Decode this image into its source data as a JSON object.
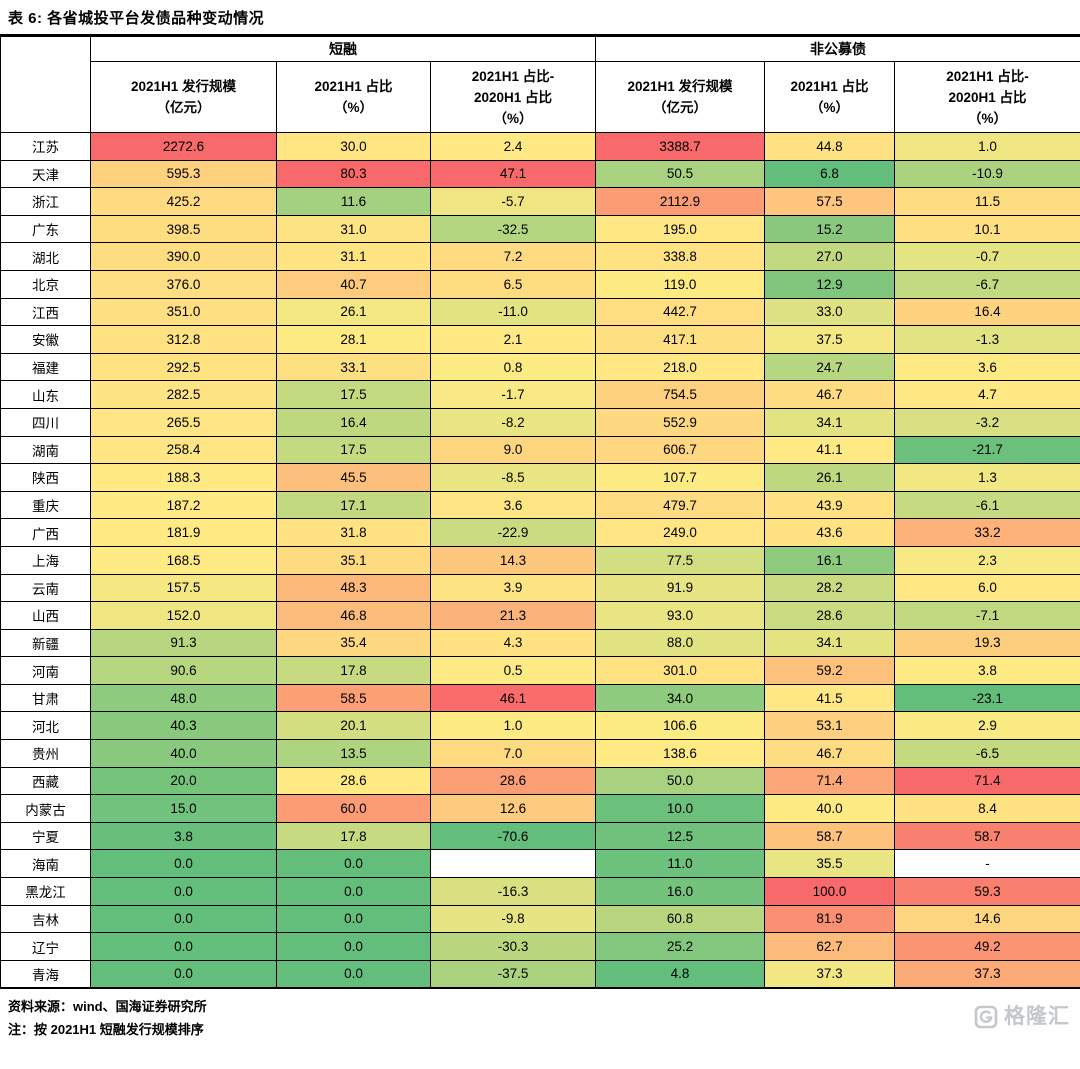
{
  "chart_data": {
    "type": "table",
    "title": "表 6: 各省城投平台发债品种变动情况",
    "corner_label": "",
    "column_groups": [
      {
        "label": "短融",
        "span": 3
      },
      {
        "label": "非公募债",
        "span": 3
      }
    ],
    "columns": [
      {
        "group": "短融",
        "lines": [
          "2021H1 发行规模",
          "（亿元）"
        ]
      },
      {
        "group": "短融",
        "lines": [
          "2021H1 占比",
          "（%）"
        ]
      },
      {
        "group": "短融",
        "lines": [
          "2021H1 占比-",
          "2020H1 占比",
          "（%）"
        ]
      },
      {
        "group": "非公募债",
        "lines": [
          "2021H1 发行规模",
          "（亿元）"
        ]
      },
      {
        "group": "非公募债",
        "lines": [
          "2021H1 占比",
          "（%）"
        ]
      },
      {
        "group": "非公募债",
        "lines": [
          "2021H1 占比-",
          "2020H1 占比",
          "（%）"
        ]
      }
    ],
    "rows": [
      {
        "province": "江苏",
        "values": [
          2272.6,
          30.0,
          2.4,
          3388.7,
          44.8,
          1.0
        ]
      },
      {
        "province": "天津",
        "values": [
          595.3,
          80.3,
          47.1,
          50.5,
          6.8,
          -10.9
        ]
      },
      {
        "province": "浙江",
        "values": [
          425.2,
          11.6,
          -5.7,
          2112.9,
          57.5,
          11.5
        ]
      },
      {
        "province": "广东",
        "values": [
          398.5,
          31.0,
          -32.5,
          195.0,
          15.2,
          10.1
        ]
      },
      {
        "province": "湖北",
        "values": [
          390.0,
          31.1,
          7.2,
          338.8,
          27.0,
          -0.7
        ]
      },
      {
        "province": "北京",
        "values": [
          376.0,
          40.7,
          6.5,
          119.0,
          12.9,
          -6.7
        ]
      },
      {
        "province": "江西",
        "values": [
          351.0,
          26.1,
          -11.0,
          442.7,
          33.0,
          16.4
        ]
      },
      {
        "province": "安徽",
        "values": [
          312.8,
          28.1,
          2.1,
          417.1,
          37.5,
          -1.3
        ]
      },
      {
        "province": "福建",
        "values": [
          292.5,
          33.1,
          0.8,
          218.0,
          24.7,
          3.6
        ]
      },
      {
        "province": "山东",
        "values": [
          282.5,
          17.5,
          -1.7,
          754.5,
          46.7,
          4.7
        ]
      },
      {
        "province": "四川",
        "values": [
          265.5,
          16.4,
          -8.2,
          552.9,
          34.1,
          -3.2
        ]
      },
      {
        "province": "湖南",
        "values": [
          258.4,
          17.5,
          9.0,
          606.7,
          41.1,
          -21.7
        ]
      },
      {
        "province": "陕西",
        "values": [
          188.3,
          45.5,
          -8.5,
          107.7,
          26.1,
          1.3
        ]
      },
      {
        "province": "重庆",
        "values": [
          187.2,
          17.1,
          3.6,
          479.7,
          43.9,
          -6.1
        ]
      },
      {
        "province": "广西",
        "values": [
          181.9,
          31.8,
          -22.9,
          249.0,
          43.6,
          33.2
        ]
      },
      {
        "province": "上海",
        "values": [
          168.5,
          35.1,
          14.3,
          77.5,
          16.1,
          2.3
        ]
      },
      {
        "province": "云南",
        "values": [
          157.5,
          48.3,
          3.9,
          91.9,
          28.2,
          6.0
        ]
      },
      {
        "province": "山西",
        "values": [
          152.0,
          46.8,
          21.3,
          93.0,
          28.6,
          -7.1
        ]
      },
      {
        "province": "新疆",
        "values": [
          91.3,
          35.4,
          4.3,
          88.0,
          34.1,
          19.3
        ]
      },
      {
        "province": "河南",
        "values": [
          90.6,
          17.8,
          0.5,
          301.0,
          59.2,
          3.8
        ]
      },
      {
        "province": "甘肃",
        "values": [
          48.0,
          58.5,
          46.1,
          34.0,
          41.5,
          -23.1
        ]
      },
      {
        "province": "河北",
        "values": [
          40.3,
          20.1,
          1.0,
          106.6,
          53.1,
          2.9
        ]
      },
      {
        "province": "贵州",
        "values": [
          40.0,
          13.5,
          7.0,
          138.6,
          46.7,
          -6.5
        ]
      },
      {
        "province": "西藏",
        "values": [
          20.0,
          28.6,
          28.6,
          50.0,
          71.4,
          71.4
        ]
      },
      {
        "province": "内蒙古",
        "values": [
          15.0,
          60.0,
          12.6,
          10.0,
          40.0,
          8.4
        ]
      },
      {
        "province": "宁夏",
        "values": [
          3.8,
          17.8,
          -70.6,
          12.5,
          58.7,
          58.7
        ]
      },
      {
        "province": "海南",
        "values": [
          0.0,
          0.0,
          null,
          11.0,
          35.5,
          "-"
        ]
      },
      {
        "province": "黑龙江",
        "values": [
          0.0,
          0.0,
          -16.3,
          16.0,
          100.0,
          59.3
        ]
      },
      {
        "province": "吉林",
        "values": [
          0.0,
          0.0,
          -9.8,
          60.8,
          81.9,
          14.6
        ]
      },
      {
        "province": "辽宁",
        "values": [
          0.0,
          0.0,
          -30.3,
          25.2,
          62.7,
          49.2
        ]
      },
      {
        "province": "青海",
        "values": [
          0.0,
          0.0,
          -37.5,
          4.8,
          37.3,
          37.3
        ]
      }
    ],
    "heatmap": {
      "scale": "per-column 3-color scale, green(min) to yellow(50th percentile) to red(max)",
      "min_color": "#63BE7B",
      "mid_color": "#FFEB84",
      "max_color": "#F8696B",
      "blank_color": "#FFFFFF"
    }
  },
  "footer": {
    "source": "资料来源：wind、国海证券研究所",
    "note": "注：按 2021H1 短融发行规模排序"
  },
  "watermark": "格隆汇"
}
